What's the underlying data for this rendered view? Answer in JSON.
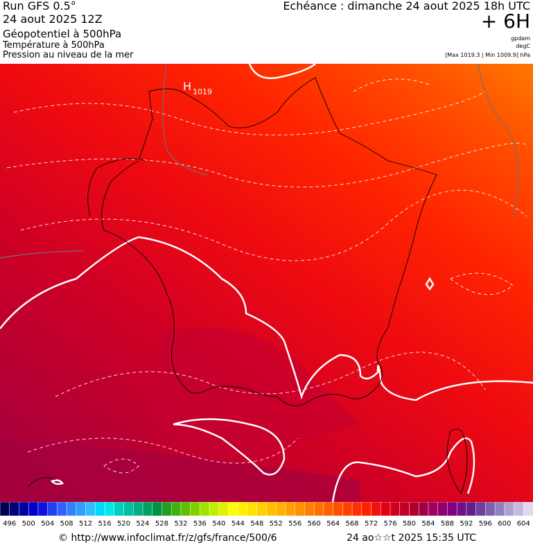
{
  "header": {
    "run": "Run GFS 0.5°",
    "run_date": "24 aout 2025 12Z",
    "field_1": "Géopotentiel à 500hPa",
    "field_2": "Température à 500hPa",
    "field_3": "Pression au niveau de la mer",
    "valid_time": "Echéance : dimanche 24 aout 2025 18h UTC",
    "lead_time": "+ 6H",
    "unit_1": "gpdam",
    "unit_2": "degC",
    "pressure_range": "[Max 1019.3 | Min 1009.9] hPa"
  },
  "map": {
    "high_label": "H",
    "high_value": "1019"
  },
  "legend": {
    "labels": [
      496,
      500,
      504,
      508,
      512,
      516,
      520,
      524,
      528,
      532,
      536,
      540,
      544,
      548,
      552,
      556,
      560,
      564,
      568,
      572,
      576,
      580,
      584,
      588,
      592,
      596,
      600,
      604
    ],
    "colors": [
      "#000050",
      "#00007a",
      "#0000a0",
      "#0000c8",
      "#1010e0",
      "#2040f0",
      "#3060ff",
      "#3080ff",
      "#30a0ff",
      "#30c0ff",
      "#00d8ff",
      "#00e8e8",
      "#00d0c0",
      "#00c0a0",
      "#00b080",
      "#00a060",
      "#009040",
      "#20a020",
      "#40b010",
      "#60c000",
      "#80d000",
      "#a0e000",
      "#c0f000",
      "#e0f000",
      "#ffff00",
      "#fff000",
      "#ffe000",
      "#ffd000",
      "#ffc000",
      "#ffb000",
      "#ffa000",
      "#ff9000",
      "#ff8000",
      "#ff7000",
      "#ff6000",
      "#ff5000",
      "#ff4000",
      "#ff3000",
      "#ff2000",
      "#f01010",
      "#e00010",
      "#d00020",
      "#c00028",
      "#b00030",
      "#a00040",
      "#a00060",
      "#900070",
      "#800080",
      "#70108a",
      "#602090",
      "#7040a0",
      "#8060b0",
      "#9080c0",
      "#b0a0d0",
      "#c8b8e0",
      "#e0d8f0"
    ]
  },
  "footer": {
    "source": "© http://www.infoclimat.fr/z/gfs/france/500/6",
    "timestamp": "24 ao☆☆t 2025 15:35 UTC"
  }
}
